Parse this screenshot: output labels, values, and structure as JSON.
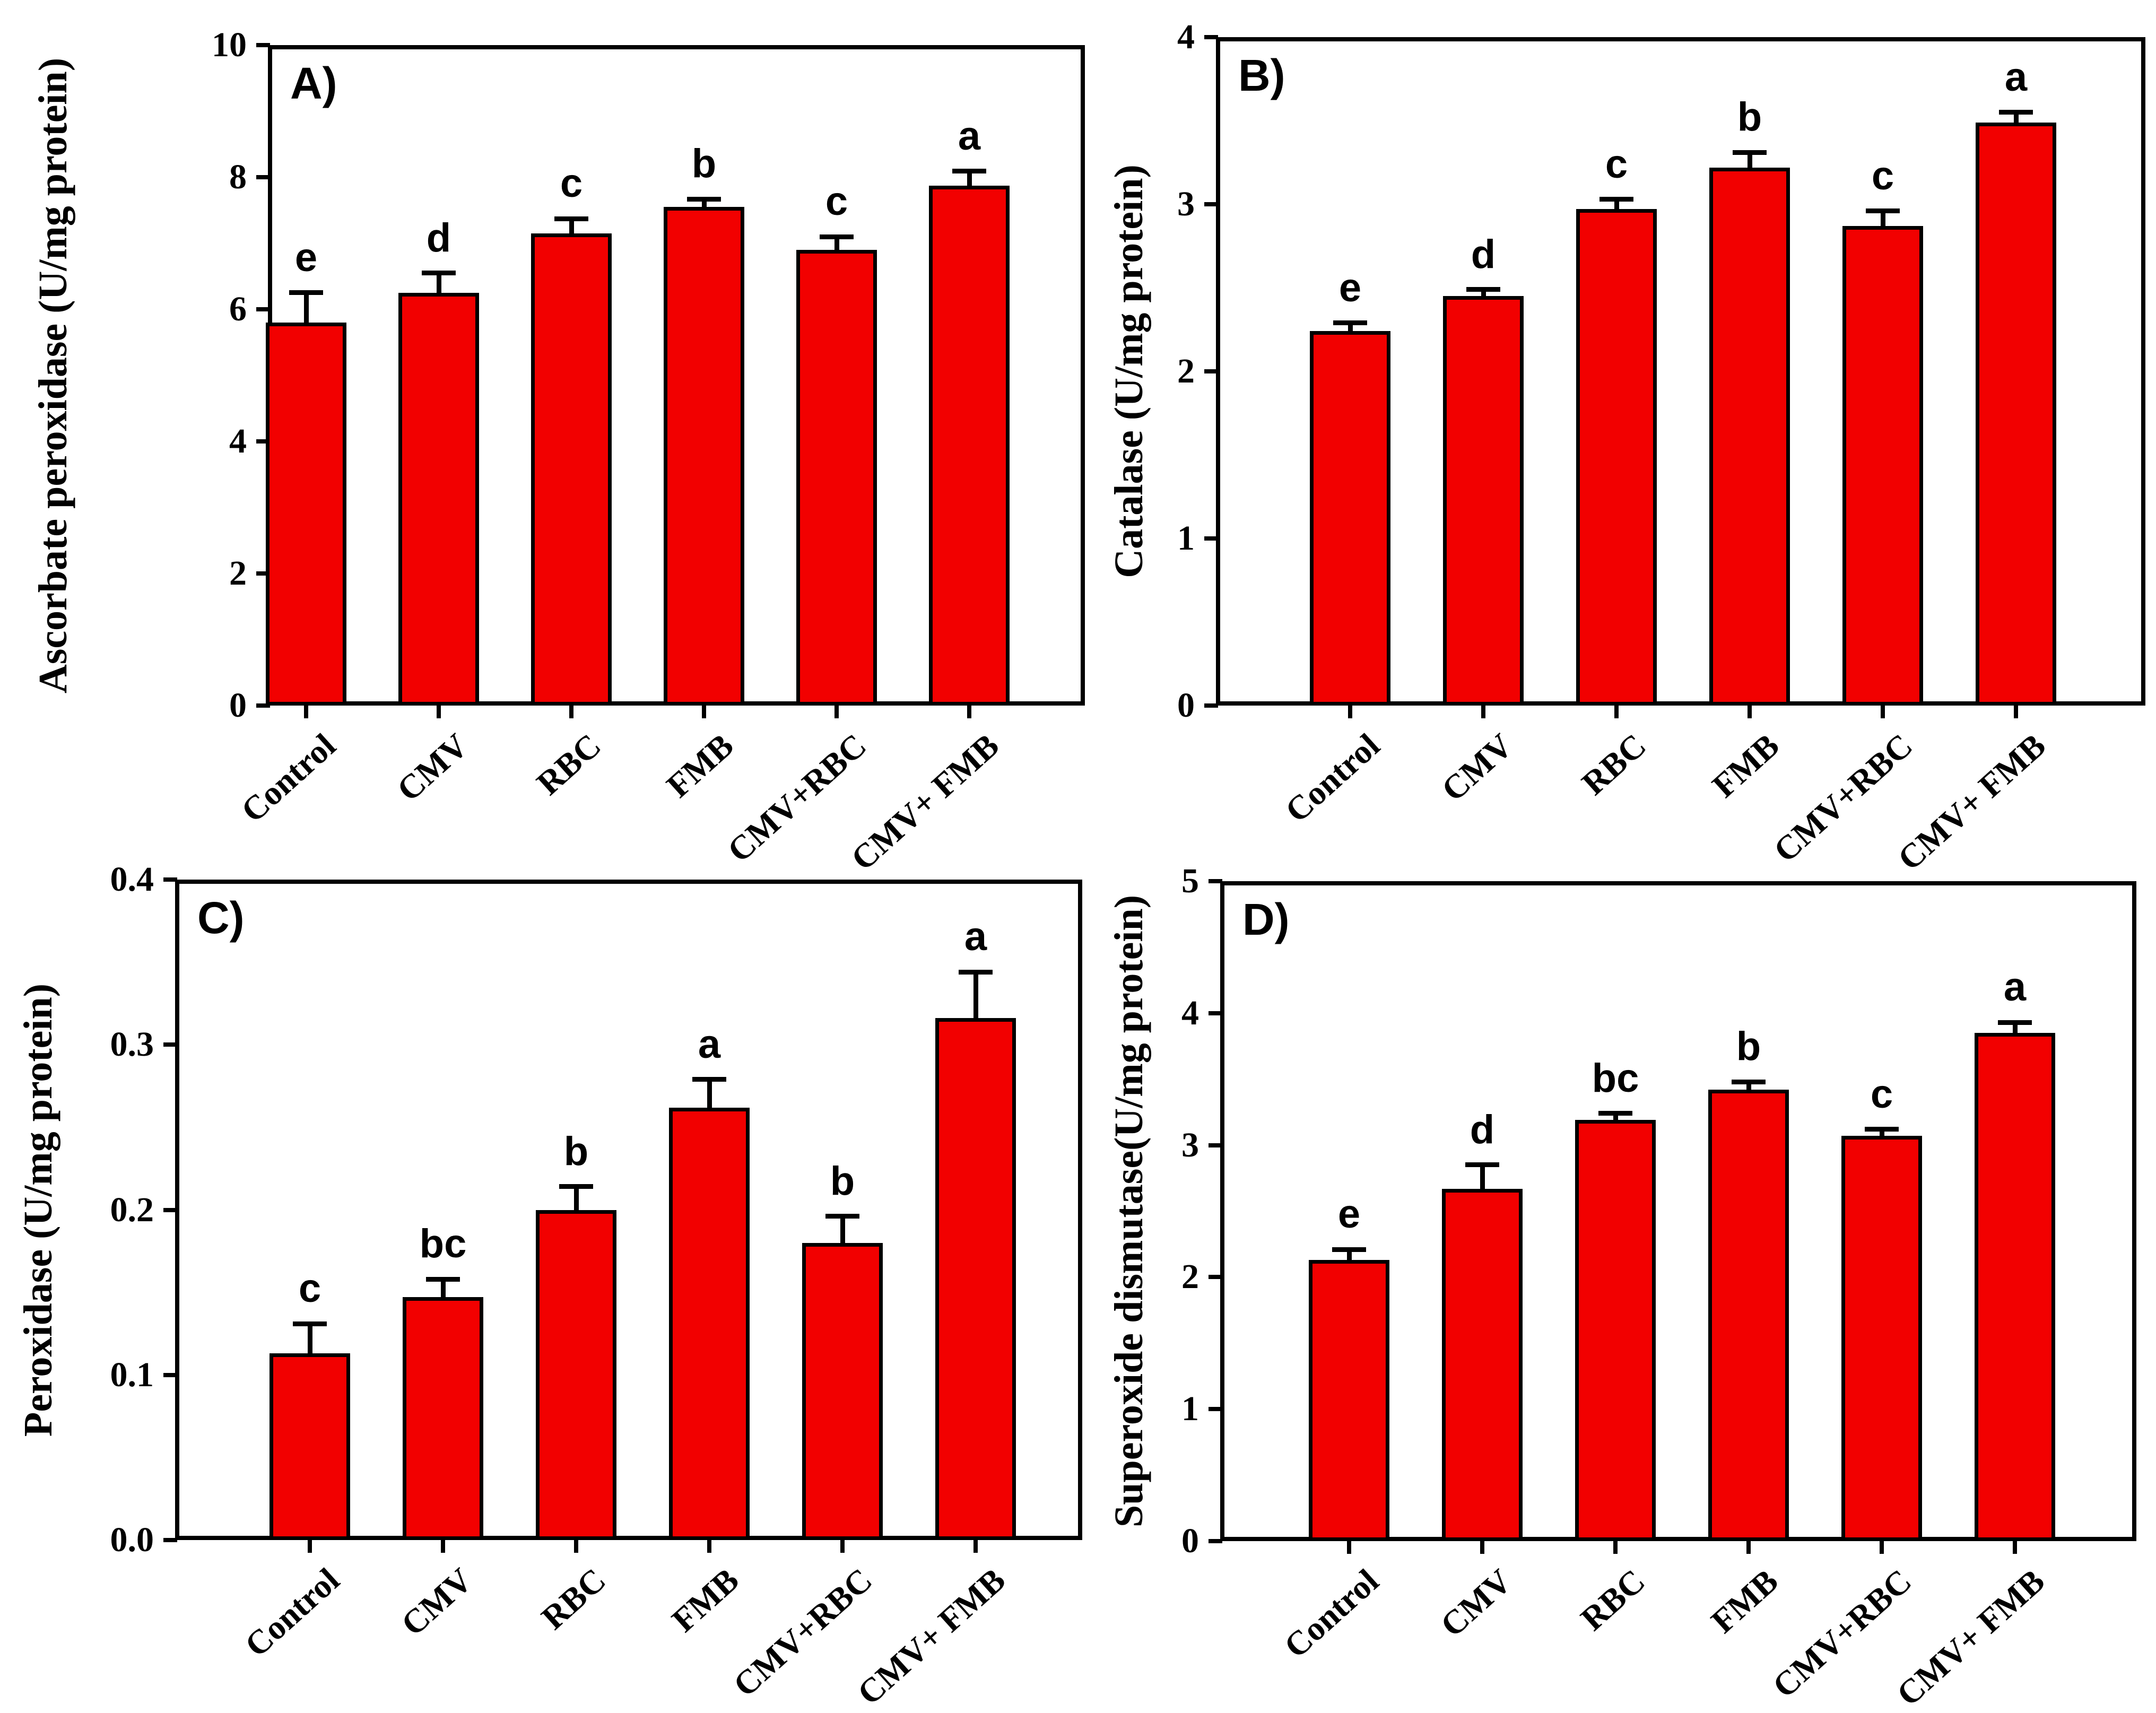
{
  "figure": {
    "background": "#ffffff",
    "bar_fill": "#f20000",
    "bar_stroke": "#000000",
    "axis_color": "#000000",
    "text_color": "#000000"
  },
  "chart_data": [
    {
      "type": "bar",
      "panel_label": "A)",
      "ylabel": "Ascorbate peroxidase (U/mg protein)",
      "xlabel": "",
      "ylim": [
        0,
        10
      ],
      "ytick_values": [
        0,
        2,
        4,
        6,
        8,
        10
      ],
      "ytick_labels": [
        "0",
        "2",
        "4",
        "6",
        "8",
        "10"
      ],
      "grid": false,
      "legend": "none",
      "categories": [
        "Control",
        "CMV",
        "RBC",
        "FMB",
        "CMV+RBC",
        "CMV+ FMB"
      ],
      "values": [
        5.8,
        6.25,
        7.15,
        7.55,
        6.9,
        7.87
      ],
      "errors": [
        0.45,
        0.3,
        0.22,
        0.12,
        0.2,
        0.22
      ],
      "sig_letters": [
        "e",
        "d",
        "c",
        "b",
        "c",
        "a"
      ]
    },
    {
      "type": "bar",
      "panel_label": "B)",
      "ylabel": "Catalase (U/mg protein)",
      "xlabel": "",
      "ylim": [
        0,
        4
      ],
      "ytick_values": [
        0,
        1,
        2,
        3,
        4
      ],
      "ytick_labels": [
        "0",
        "1",
        "2",
        "3",
        "4"
      ],
      "grid": false,
      "legend": "none",
      "categories": [
        "Control",
        "CMV",
        "RBC",
        "FMB",
        "CMV+RBC",
        "CMV+ FMB"
      ],
      "values": [
        2.24,
        2.45,
        2.97,
        3.22,
        2.87,
        3.49
      ],
      "errors": [
        0.05,
        0.04,
        0.06,
        0.09,
        0.09,
        0.06
      ],
      "sig_letters": [
        "e",
        "d",
        "c",
        "b",
        "c",
        "a"
      ]
    },
    {
      "type": "bar",
      "panel_label": "C)",
      "ylabel": "Peroxidase (U/mg protein)",
      "xlabel": "",
      "ylim": [
        0,
        0.4
      ],
      "ytick_values": [
        0,
        0.1,
        0.2,
        0.3,
        0.4
      ],
      "ytick_labels": [
        "0.0",
        "0.1",
        "0.2",
        "0.3",
        "0.4"
      ],
      "grid": false,
      "legend": "none",
      "categories": [
        "Control",
        "CMV",
        "RBC",
        "FMB",
        "CMV+RBC",
        "CMV+ FMB"
      ],
      "values": [
        0.113,
        0.147,
        0.2,
        0.262,
        0.18,
        0.316
      ],
      "errors": [
        0.018,
        0.011,
        0.014,
        0.017,
        0.016,
        0.028
      ],
      "sig_letters": [
        "c",
        "bc",
        "b",
        "a",
        "b",
        "a"
      ]
    },
    {
      "type": "bar",
      "panel_label": "D)",
      "ylabel": "Superoxide dismutase(U/mg protein)",
      "xlabel": "",
      "ylim": [
        0,
        5
      ],
      "ytick_values": [
        0,
        1,
        2,
        3,
        4,
        5
      ],
      "ytick_labels": [
        "0",
        "1",
        "2",
        "3",
        "4",
        "5"
      ],
      "grid": false,
      "legend": "none",
      "categories": [
        "Control",
        "CMV",
        "RBC",
        "FMB",
        "CMV+RBC",
        "CMV+ FMB"
      ],
      "values": [
        2.13,
        2.67,
        3.19,
        3.42,
        3.07,
        3.85
      ],
      "errors": [
        0.08,
        0.18,
        0.05,
        0.06,
        0.05,
        0.08
      ],
      "sig_letters": [
        "e",
        "d",
        "bc",
        "b",
        "c",
        "a"
      ]
    }
  ]
}
